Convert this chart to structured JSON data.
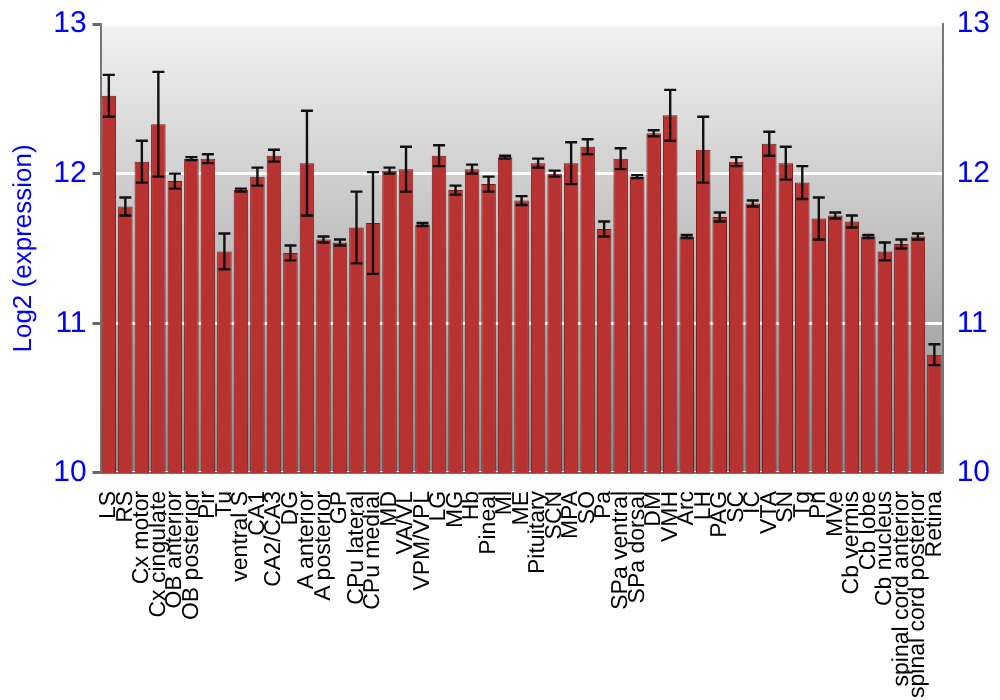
{
  "chart_data": {
    "type": "bar",
    "ylabel": "Log2 (expression)",
    "categories": [
      "LS",
      "RS",
      "Cx motor",
      "Cx cingulate",
      "OB anterior",
      "OB posterior",
      "Pir",
      "Tu",
      "ventral S",
      "CA1",
      "CA2/CA3",
      "DG",
      "A anterior",
      "A posterior",
      "GP",
      "CPu lateral",
      "CPu medial",
      "MD",
      "VA/VL",
      "VPM/VPL",
      "LG",
      "MG",
      "Hb",
      "Pineal",
      "Ml",
      "ME",
      "Pituitary",
      "SCN",
      "MPA",
      "SO",
      "Pa",
      "SPa ventral",
      "SPa dorsal",
      "DM",
      "VMH",
      "Arc",
      "LH",
      "PAG",
      "SC",
      "IC",
      "VTA",
      "SN",
      "Tg",
      "Pn",
      "MVe",
      "Cb vermis",
      "Cb lobe",
      "Cb nucleus",
      "spinal cord anterior",
      "spinal cord posterior",
      "Retina"
    ],
    "values": [
      12.52,
      11.78,
      12.08,
      12.33,
      11.95,
      12.1,
      12.1,
      11.48,
      11.89,
      11.98,
      12.12,
      11.47,
      12.07,
      11.56,
      11.54,
      11.64,
      11.67,
      12.02,
      12.03,
      11.66,
      12.12,
      11.89,
      12.03,
      11.93,
      12.11,
      11.82,
      12.07,
      12.0,
      12.07,
      12.18,
      11.63,
      12.1,
      11.98,
      12.27,
      12.39,
      11.58,
      12.16,
      11.71,
      12.08,
      11.8,
      12.2,
      12.07,
      11.94,
      11.7,
      11.72,
      11.68,
      11.58,
      11.48,
      11.53,
      11.58,
      10.79
    ],
    "errors": [
      0.14,
      0.06,
      0.14,
      0.35,
      0.05,
      0.01,
      0.03,
      0.12,
      0.01,
      0.06,
      0.04,
      0.05,
      0.35,
      0.02,
      0.02,
      0.24,
      0.34,
      0.02,
      0.15,
      0.01,
      0.07,
      0.03,
      0.03,
      0.05,
      0.01,
      0.03,
      0.03,
      0.02,
      0.14,
      0.05,
      0.05,
      0.07,
      0.01,
      0.02,
      0.17,
      0.01,
      0.22,
      0.03,
      0.03,
      0.02,
      0.08,
      0.11,
      0.11,
      0.14,
      0.02,
      0.04,
      0.01,
      0.06,
      0.03,
      0.02,
      0.07
    ],
    "color": "#b83232",
    "ylim": [
      10,
      13
    ],
    "yticks": [
      10,
      11,
      12,
      13
    ],
    "y2lim": [
      10,
      13
    ],
    "y2ticks": [
      10,
      11,
      12,
      13
    ],
    "grid": "y",
    "legend": false
  }
}
